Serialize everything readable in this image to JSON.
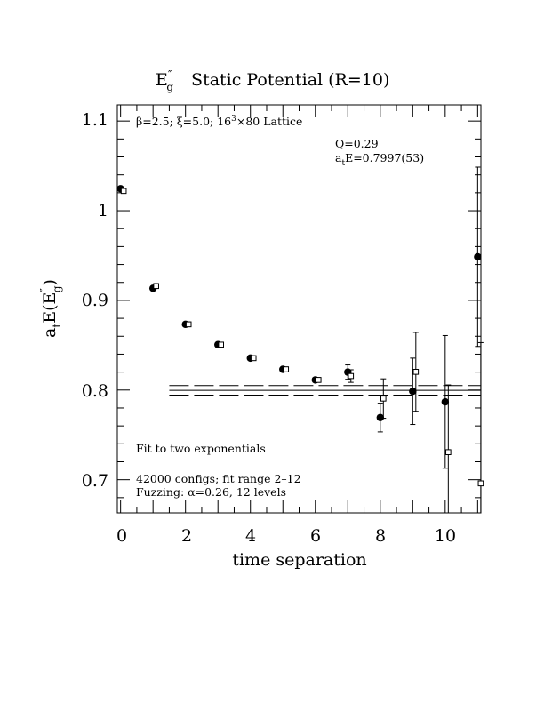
{
  "chart_data": {
    "type": "scatter",
    "title": {
      "prefix": "E",
      "prime": "″",
      "sub": "g",
      "rest": "Static Potential (R=10)"
    },
    "xlabel": "time separation",
    "ylabel": {
      "a": "a",
      "a_sub": "t",
      "rest": "E(E",
      "prime": "″",
      "sub": "g",
      "close": ")"
    },
    "xlim": [
      -0.1,
      11.1
    ],
    "ylim": [
      0.663,
      1.118
    ],
    "x_ticks": [
      0,
      2,
      4,
      6,
      8,
      10
    ],
    "x_tick_labels": [
      "0",
      "2",
      "4",
      "6",
      "8",
      "10"
    ],
    "y_ticks": [
      0.7,
      0.8,
      0.9,
      1.0,
      1.1
    ],
    "y_tick_labels": [
      "0.7",
      "0.8",
      "0.9",
      "1",
      "1.1"
    ],
    "annotations": {
      "lattice": {
        "beta": "β",
        "text1": "=2.5; ",
        "xi": "ξ",
        "text2": "=5.0; 16",
        "sup": "3",
        "text3": "×80 Lattice"
      },
      "q": "Q=0.29",
      "ae": {
        "a": "a",
        "sub": "t",
        "rest": "E=0.7997(53)"
      },
      "fit": "Fit to two exponentials",
      "configs": "42000 configs; fit range 2–12",
      "fuzzing": {
        "text1": "Fuzzing: ",
        "alpha": "α",
        "text2": "=0.26, 12 levels"
      }
    },
    "fit": {
      "value": 0.7997,
      "error": 0.0053,
      "x_range": [
        1.5,
        11.1
      ]
    },
    "series": [
      {
        "marker": "filled-circle",
        "points": [
          {
            "x": 0,
            "y": 1.0245,
            "err": 0.002
          },
          {
            "x": 1,
            "y": 0.9135,
            "err": 0.0025
          },
          {
            "x": 2,
            "y": 0.8733,
            "err": 0.0025
          },
          {
            "x": 3,
            "y": 0.8506,
            "err": 0.0025
          },
          {
            "x": 4,
            "y": 0.8356,
            "err": 0.0025
          },
          {
            "x": 5,
            "y": 0.8231,
            "err": 0.003
          },
          {
            "x": 6,
            "y": 0.8113,
            "err": 0.003
          },
          {
            "x": 7,
            "y": 0.82,
            "err": 0.008
          },
          {
            "x": 8,
            "y": 0.7693,
            "err": 0.016
          },
          {
            "x": 9,
            "y": 0.7986,
            "err": 0.037
          },
          {
            "x": 10,
            "y": 0.7868,
            "err": 0.074
          },
          {
            "x": 11,
            "y": 0.9486,
            "err": 0.1
          }
        ]
      },
      {
        "marker": "open-square",
        "points": [
          {
            "x": 0,
            "y": 1.022,
            "err": 0.002
          },
          {
            "x": 1,
            "y": 0.916,
            "err": 0.0025
          },
          {
            "x": 2,
            "y": 0.8733,
            "err": 0.0025
          },
          {
            "x": 3,
            "y": 0.8506,
            "err": 0.0025
          },
          {
            "x": 4,
            "y": 0.8356,
            "err": 0.0025
          },
          {
            "x": 5,
            "y": 0.8231,
            "err": 0.003
          },
          {
            "x": 6,
            "y": 0.8113,
            "err": 0.003
          },
          {
            "x": 7,
            "y": 0.8156,
            "err": 0.007
          },
          {
            "x": 8,
            "y": 0.7905,
            "err": 0.022
          },
          {
            "x": 9,
            "y": 0.8203,
            "err": 0.044
          },
          {
            "x": 10,
            "y": 0.7307,
            "err": 0.075
          },
          {
            "x": 11,
            "y": 0.6959,
            "err": 0.157
          }
        ]
      }
    ]
  }
}
